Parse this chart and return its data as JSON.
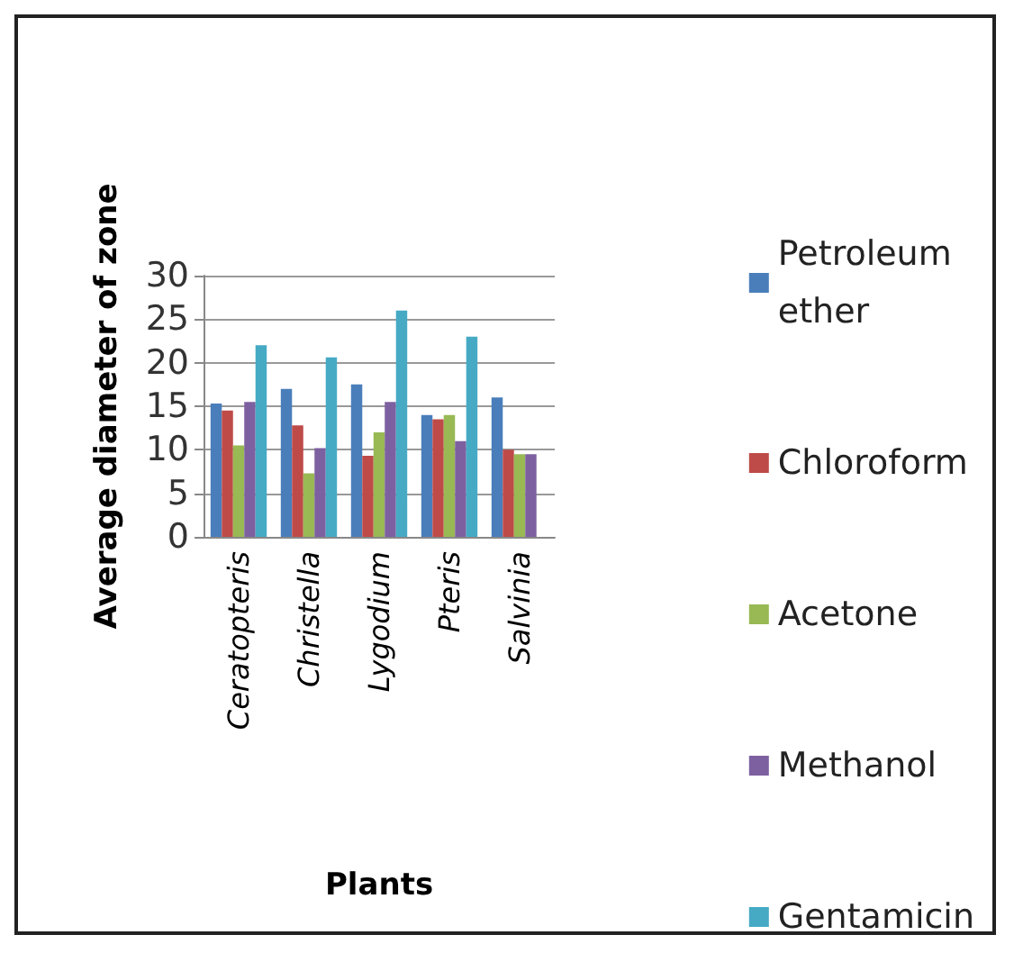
{
  "chart_data": {
    "type": "bar",
    "xlabel": "Plants",
    "ylabel": "Average diameter of zone",
    "categories": [
      "Ceratopteris",
      "Christella",
      "Lygodium",
      "Pteris",
      "Salvinia"
    ],
    "series": [
      {
        "name": "Petroleum ether",
        "color": "#4a7ebb",
        "values": [
          15.3,
          17,
          17.5,
          14,
          16
        ]
      },
      {
        "name": "Chloroform",
        "color": "#be4b48",
        "values": [
          14.5,
          12.8,
          9.3,
          13.5,
          10
        ]
      },
      {
        "name": "Acetone",
        "color": "#98b954",
        "values": [
          10.5,
          7.3,
          12,
          14,
          9.5
        ]
      },
      {
        "name": "Methanol",
        "color": "#7d60a0",
        "values": [
          15.5,
          10.2,
          15.5,
          11,
          9.5
        ]
      },
      {
        "name": "Gentamicin",
        "color": "#46aac5",
        "values": [
          22,
          20.6,
          26,
          23,
          null
        ]
      }
    ],
    "ylim": [
      0,
      30
    ],
    "yticks": [
      0,
      5,
      10,
      15,
      20,
      25,
      30
    ],
    "grid": "y",
    "legend": "right"
  }
}
